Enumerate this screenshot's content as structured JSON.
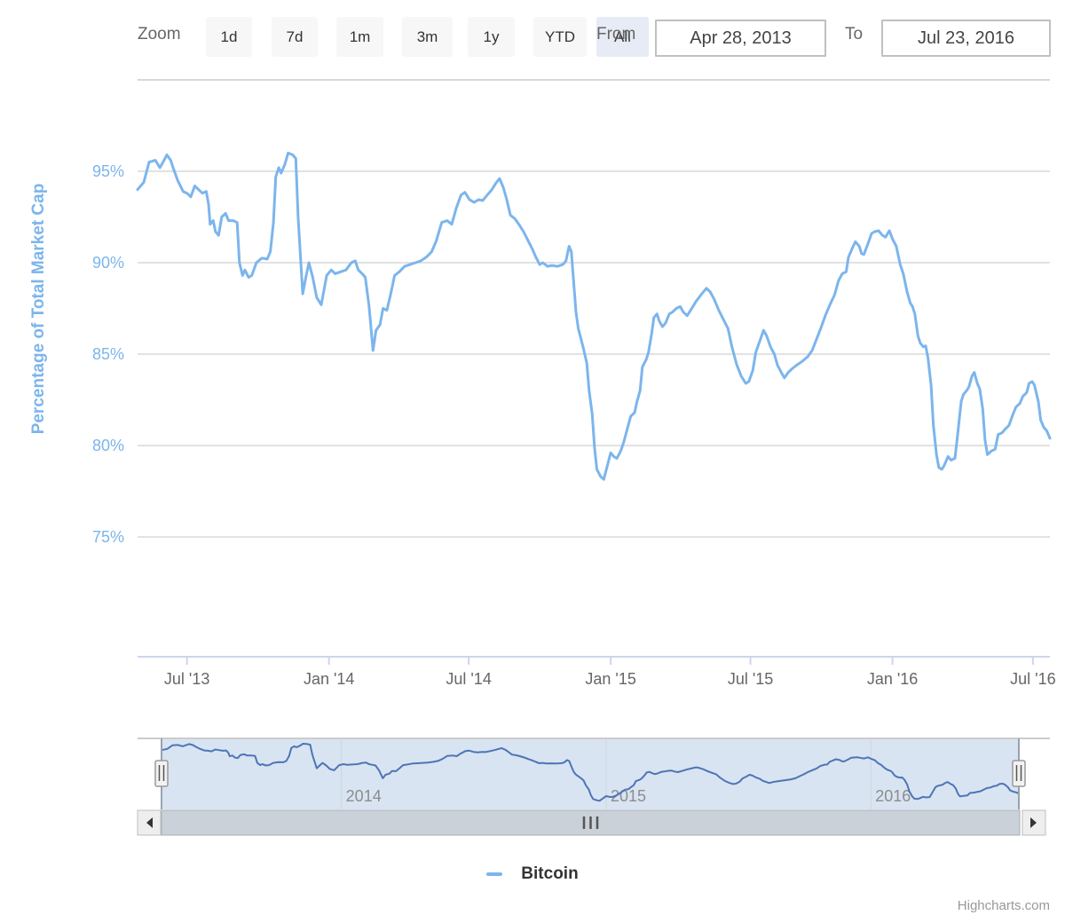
{
  "toolbar": {
    "zoom_label": "Zoom",
    "buttons": [
      {
        "label": "1d",
        "selected": false
      },
      {
        "label": "7d",
        "selected": false
      },
      {
        "label": "1m",
        "selected": false
      },
      {
        "label": "3m",
        "selected": false
      },
      {
        "label": "1y",
        "selected": false
      },
      {
        "label": "YTD",
        "selected": false
      },
      {
        "label": "All",
        "selected": true
      }
    ],
    "from_label": "From",
    "from_value": "Apr 28, 2013",
    "to_label": "To",
    "to_value": "Jul 23, 2016"
  },
  "legend": {
    "series_label": "Bitcoin"
  },
  "credits": {
    "text": "Highcharts.com"
  },
  "colors": {
    "series_line": "#7cb5ec",
    "axis_text_blue": "#7cb5ec",
    "grid_line": "#d8d8d8",
    "x_axis_line": "#ccd6eb",
    "x_label_gray": "#666666",
    "navigator_mask": "#d9e4f2",
    "navigator_line": "#4d75b5",
    "navigator_outline": "#97a3b2",
    "navigator_top_border": "#cccccc",
    "nav_year_label": "#8c8c8c",
    "nav_grid": "#ccd6e0",
    "handle_fill": "#f2f2f2",
    "handle_border": "#999999",
    "handle_grip": "#555555",
    "scrollbar_thumb": "#cbd1d9",
    "scrollbar_thumb_border": "#a8aeb8",
    "scrollbar_button_bg": "#eeeeee",
    "scrollbar_button_border": "#bfbfbf",
    "scrollbar_arrow": "#333333",
    "grip_color": "#555555"
  },
  "chart_data": {
    "type": "line",
    "title": "",
    "ylabel": "Percentage of Total Market Cap",
    "series_name": "Bitcoin",
    "x_range": {
      "start": "2013-04-28",
      "end": "2016-07-23",
      "total_days": 1182
    },
    "ylim": [
      72.5,
      100
    ],
    "y_ticks": [
      {
        "label": "95%",
        "value": 95
      },
      {
        "label": "90%",
        "value": 90
      },
      {
        "label": "85%",
        "value": 85
      },
      {
        "label": "80%",
        "value": 80
      },
      {
        "label": "75%",
        "value": 75
      }
    ],
    "y_top_gridline_value": 100,
    "x_ticks": [
      {
        "label": "Jul '13",
        "day": 64
      },
      {
        "label": "Jan '14",
        "day": 248
      },
      {
        "label": "Jul '14",
        "day": 429
      },
      {
        "label": "Jan '15",
        "day": 613
      },
      {
        "label": "Jul '15",
        "day": 794
      },
      {
        "label": "Jan '16",
        "day": 978
      },
      {
        "label": "Jul '16",
        "day": 1160
      }
    ],
    "navigator_years": [
      {
        "label": "2014",
        "day": 248
      },
      {
        "label": "2015",
        "day": 613
      },
      {
        "label": "2016",
        "day": 978
      }
    ],
    "legend_position": "bottom-center",
    "grid": "horizontal-only",
    "points_format": "[days_since_2013-04-28, percent_of_total_market_cap]",
    "points": [
      [
        0,
        94.0
      ],
      [
        8,
        94.4
      ],
      [
        15,
        95.5
      ],
      [
        23,
        95.6
      ],
      [
        29,
        95.2
      ],
      [
        33,
        95.5
      ],
      [
        38,
        95.9
      ],
      [
        43,
        95.6
      ],
      [
        46,
        95.2
      ],
      [
        52,
        94.5
      ],
      [
        59,
        93.9
      ],
      [
        64,
        93.8
      ],
      [
        69,
        93.6
      ],
      [
        74,
        94.2
      ],
      [
        79,
        94.0
      ],
      [
        84,
        93.8
      ],
      [
        89,
        93.9
      ],
      [
        92,
        93.2
      ],
      [
        94,
        92.1
      ],
      [
        98,
        92.3
      ],
      [
        101,
        91.7
      ],
      [
        105,
        91.5
      ],
      [
        109,
        92.5
      ],
      [
        114,
        92.7
      ],
      [
        118,
        92.3
      ],
      [
        124,
        92.3
      ],
      [
        129,
        92.2
      ],
      [
        132,
        90.0
      ],
      [
        136,
        89.3
      ],
      [
        139,
        89.6
      ],
      [
        144,
        89.2
      ],
      [
        148,
        89.3
      ],
      [
        154,
        90.0
      ],
      [
        161,
        90.25
      ],
      [
        168,
        90.2
      ],
      [
        172,
        90.6
      ],
      [
        176,
        92.2
      ],
      [
        179,
        94.7
      ],
      [
        183,
        95.2
      ],
      [
        186,
        94.9
      ],
      [
        191,
        95.4
      ],
      [
        195,
        96.0
      ],
      [
        201,
        95.9
      ],
      [
        205,
        95.7
      ],
      [
        208,
        92.5
      ],
      [
        214,
        88.3
      ],
      [
        218,
        89.2
      ],
      [
        222,
        90.0
      ],
      [
        227,
        89.2
      ],
      [
        232,
        88.1
      ],
      [
        238,
        87.7
      ],
      [
        245,
        89.3
      ],
      [
        251,
        89.6
      ],
      [
        256,
        89.4
      ],
      [
        263,
        89.5
      ],
      [
        270,
        89.6
      ],
      [
        277,
        90.0
      ],
      [
        282,
        90.1
      ],
      [
        286,
        89.6
      ],
      [
        291,
        89.4
      ],
      [
        295,
        89.2
      ],
      [
        300,
        87.6
      ],
      [
        305,
        85.2
      ],
      [
        309,
        86.3
      ],
      [
        314,
        86.6
      ],
      [
        318,
        87.5
      ],
      [
        323,
        87.4
      ],
      [
        328,
        88.3
      ],
      [
        333,
        89.3
      ],
      [
        339,
        89.5
      ],
      [
        346,
        89.8
      ],
      [
        353,
        89.9
      ],
      [
        360,
        90.0
      ],
      [
        367,
        90.1
      ],
      [
        374,
        90.3
      ],
      [
        381,
        90.6
      ],
      [
        387,
        91.2
      ],
      [
        394,
        92.2
      ],
      [
        401,
        92.3
      ],
      [
        407,
        92.1
      ],
      [
        413,
        93.0
      ],
      [
        419,
        93.7
      ],
      [
        424,
        93.85
      ],
      [
        430,
        93.45
      ],
      [
        436,
        93.3
      ],
      [
        442,
        93.45
      ],
      [
        447,
        93.4
      ],
      [
        453,
        93.7
      ],
      [
        459,
        94.0
      ],
      [
        465,
        94.4
      ],
      [
        469,
        94.6
      ],
      [
        474,
        94.1
      ],
      [
        478,
        93.5
      ],
      [
        483,
        92.6
      ],
      [
        489,
        92.4
      ],
      [
        494,
        92.1
      ],
      [
        500,
        91.7
      ],
      [
        506,
        91.2
      ],
      [
        512,
        90.7
      ],
      [
        516,
        90.3
      ],
      [
        521,
        89.9
      ],
      [
        525,
        90.0
      ],
      [
        531,
        89.8
      ],
      [
        537,
        89.85
      ],
      [
        544,
        89.8
      ],
      [
        551,
        89.9
      ],
      [
        555,
        90.1
      ],
      [
        559,
        90.9
      ],
      [
        562,
        90.6
      ],
      [
        564,
        89.5
      ],
      [
        568,
        87.3
      ],
      [
        571,
        86.4
      ],
      [
        575,
        85.75
      ],
      [
        578,
        85.25
      ],
      [
        582,
        84.5
      ],
      [
        585,
        83.0
      ],
      [
        589,
        81.7
      ],
      [
        592,
        79.9
      ],
      [
        595,
        78.7
      ],
      [
        600,
        78.3
      ],
      [
        604,
        78.15
      ],
      [
        608,
        78.8
      ],
      [
        613,
        79.6
      ],
      [
        617,
        79.4
      ],
      [
        621,
        79.3
      ],
      [
        626,
        79.7
      ],
      [
        630,
        80.2
      ],
      [
        635,
        81.0
      ],
      [
        639,
        81.6
      ],
      [
        644,
        81.8
      ],
      [
        647,
        82.4
      ],
      [
        651,
        83.0
      ],
      [
        654,
        84.3
      ],
      [
        659,
        84.7
      ],
      [
        662,
        85.1
      ],
      [
        666,
        86.1
      ],
      [
        669,
        87.0
      ],
      [
        673,
        87.2
      ],
      [
        676,
        86.8
      ],
      [
        680,
        86.5
      ],
      [
        684,
        86.7
      ],
      [
        689,
        87.2
      ],
      [
        693,
        87.3
      ],
      [
        698,
        87.5
      ],
      [
        703,
        87.6
      ],
      [
        707,
        87.3
      ],
      [
        712,
        87.1
      ],
      [
        718,
        87.5
      ],
      [
        723,
        87.85
      ],
      [
        730,
        88.25
      ],
      [
        737,
        88.6
      ],
      [
        742,
        88.4
      ],
      [
        747,
        88.0
      ],
      [
        753,
        87.4
      ],
      [
        759,
        86.9
      ],
      [
        765,
        86.4
      ],
      [
        770,
        85.4
      ],
      [
        776,
        84.45
      ],
      [
        782,
        83.8
      ],
      [
        788,
        83.4
      ],
      [
        792,
        83.5
      ],
      [
        797,
        84.1
      ],
      [
        801,
        85.1
      ],
      [
        806,
        85.7
      ],
      [
        811,
        86.3
      ],
      [
        815,
        86.0
      ],
      [
        820,
        85.4
      ],
      [
        825,
        85.0
      ],
      [
        829,
        84.4
      ],
      [
        834,
        84.0
      ],
      [
        838,
        83.7
      ],
      [
        843,
        84.0
      ],
      [
        848,
        84.2
      ],
      [
        854,
        84.4
      ],
      [
        861,
        84.6
      ],
      [
        868,
        84.85
      ],
      [
        874,
        85.2
      ],
      [
        880,
        85.85
      ],
      [
        885,
        86.4
      ],
      [
        891,
        87.1
      ],
      [
        897,
        87.7
      ],
      [
        903,
        88.25
      ],
      [
        908,
        89.0
      ],
      [
        913,
        89.4
      ],
      [
        918,
        89.5
      ],
      [
        921,
        90.3
      ],
      [
        926,
        90.8
      ],
      [
        930,
        91.15
      ],
      [
        935,
        90.9
      ],
      [
        938,
        90.5
      ],
      [
        941,
        90.45
      ],
      [
        946,
        91.0
      ],
      [
        951,
        91.6
      ],
      [
        955,
        91.7
      ],
      [
        960,
        91.75
      ],
      [
        965,
        91.5
      ],
      [
        969,
        91.4
      ],
      [
        974,
        91.75
      ],
      [
        978,
        91.3
      ],
      [
        983,
        90.9
      ],
      [
        988,
        89.9
      ],
      [
        992,
        89.4
      ],
      [
        997,
        88.4
      ],
      [
        1001,
        87.8
      ],
      [
        1004,
        87.6
      ],
      [
        1007,
        87.2
      ],
      [
        1011,
        86.0
      ],
      [
        1014,
        85.6
      ],
      [
        1018,
        85.4
      ],
      [
        1021,
        85.45
      ],
      [
        1024,
        84.8
      ],
      [
        1028,
        83.3
      ],
      [
        1031,
        81.1
      ],
      [
        1035,
        79.5
      ],
      [
        1038,
        78.8
      ],
      [
        1042,
        78.7
      ],
      [
        1045,
        78.9
      ],
      [
        1050,
        79.4
      ],
      [
        1054,
        79.2
      ],
      [
        1059,
        79.3
      ],
      [
        1063,
        80.8
      ],
      [
        1067,
        82.4
      ],
      [
        1070,
        82.8
      ],
      [
        1074,
        83.0
      ],
      [
        1077,
        83.2
      ],
      [
        1081,
        83.8
      ],
      [
        1084,
        84.0
      ],
      [
        1088,
        83.4
      ],
      [
        1091,
        83.1
      ],
      [
        1095,
        82.0
      ],
      [
        1098,
        80.3
      ],
      [
        1101,
        79.5
      ],
      [
        1106,
        79.7
      ],
      [
        1111,
        79.8
      ],
      [
        1115,
        80.6
      ],
      [
        1120,
        80.7
      ],
      [
        1124,
        80.9
      ],
      [
        1129,
        81.1
      ],
      [
        1134,
        81.7
      ],
      [
        1138,
        82.1
      ],
      [
        1143,
        82.3
      ],
      [
        1147,
        82.7
      ],
      [
        1152,
        82.9
      ],
      [
        1155,
        83.4
      ],
      [
        1159,
        83.5
      ],
      [
        1162,
        83.3
      ],
      [
        1167,
        82.4
      ],
      [
        1170,
        81.4
      ],
      [
        1174,
        81.0
      ],
      [
        1178,
        80.8
      ],
      [
        1182,
        80.4
      ]
    ]
  }
}
